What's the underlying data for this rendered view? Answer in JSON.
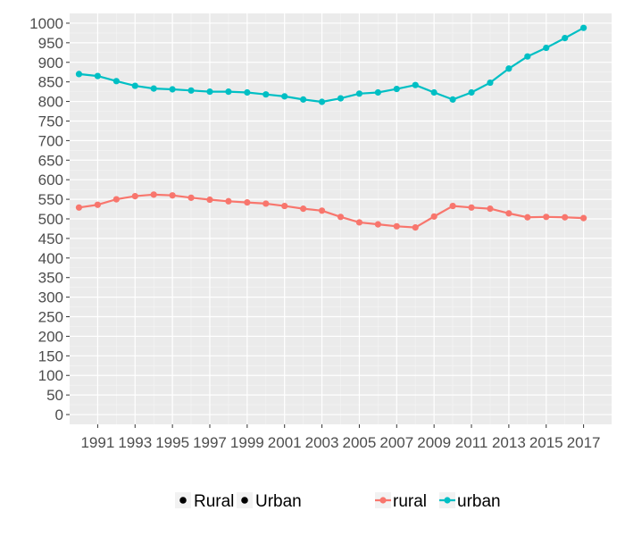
{
  "chart_data": {
    "type": "line",
    "title": "",
    "xlabel": "",
    "ylabel": "",
    "xlim": [
      1989.5,
      2018.5
    ],
    "ylim": [
      -25,
      1025
    ],
    "x_ticks": [
      1991,
      1993,
      1995,
      1997,
      1999,
      2001,
      2003,
      2005,
      2007,
      2009,
      2011,
      2013,
      2015,
      2017
    ],
    "y_ticks": [
      0,
      50,
      100,
      150,
      200,
      250,
      300,
      350,
      400,
      450,
      500,
      550,
      600,
      650,
      700,
      750,
      800,
      850,
      900,
      950,
      1000
    ],
    "grid": true,
    "legend_position": "bottom",
    "x": [
      1990,
      1991,
      1992,
      1993,
      1994,
      1995,
      1996,
      1997,
      1998,
      1999,
      2000,
      2001,
      2002,
      2003,
      2004,
      2005,
      2006,
      2007,
      2008,
      2009,
      2010,
      2011,
      2012,
      2013,
      2014,
      2015,
      2016,
      2017
    ],
    "series": [
      {
        "name": "rural",
        "color": "#F8766D",
        "values": [
          529,
          536,
          550,
          558,
          562,
          560,
          554,
          549,
          545,
          542,
          539,
          533,
          526,
          521,
          505,
          491,
          486,
          481,
          478,
          506,
          533,
          529,
          526,
          514,
          504,
          505,
          504,
          502
        ]
      },
      {
        "name": "urban",
        "color": "#00BFC4",
        "values": [
          870,
          865,
          852,
          840,
          833,
          831,
          828,
          825,
          825,
          823,
          818,
          813,
          805,
          799,
          808,
          820,
          823,
          832,
          842,
          823,
          805,
          823,
          848,
          884,
          915,
          937,
          962,
          988
        ]
      }
    ],
    "legend": {
      "shape_entries": [
        "Rural",
        "Urban"
      ],
      "color_entries": [
        {
          "label": "rural",
          "color": "#F8766D"
        },
        {
          "label": "urban",
          "color": "#00BFC4"
        }
      ]
    }
  }
}
